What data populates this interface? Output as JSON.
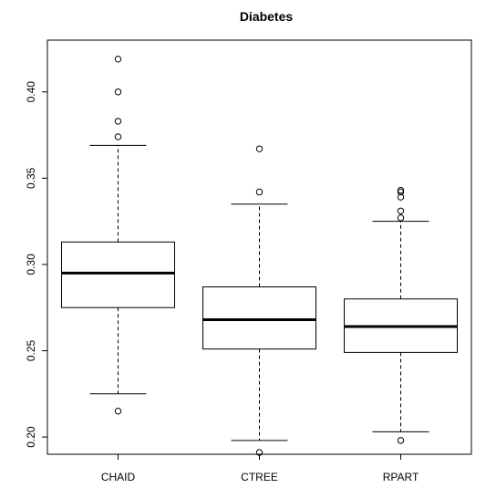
{
  "chart_data": {
    "type": "boxplot",
    "title": "Diabetes",
    "xlabel": "",
    "ylabel": "",
    "ylim": [
      0.19,
      0.43
    ],
    "yticks": [
      "0.20",
      "0.25",
      "0.30",
      "0.35",
      "0.40"
    ],
    "grid": false,
    "categories": [
      "CHAID",
      "CTREE",
      "RPART"
    ],
    "boxes": [
      {
        "category": "CHAID",
        "whisker_low": 0.225,
        "q1": 0.275,
        "median": 0.295,
        "q3": 0.313,
        "whisker_high": 0.369,
        "outliers": [
          0.419,
          0.4,
          0.383,
          0.374,
          0.215
        ]
      },
      {
        "category": "CTREE",
        "whisker_low": 0.198,
        "q1": 0.251,
        "median": 0.268,
        "q3": 0.287,
        "whisker_high": 0.335,
        "outliers": [
          0.367,
          0.342,
          0.191
        ]
      },
      {
        "category": "RPART",
        "whisker_low": 0.203,
        "q1": 0.249,
        "median": 0.264,
        "q3": 0.28,
        "whisker_high": 0.325,
        "outliers": [
          0.343,
          0.342,
          0.339,
          0.331,
          0.327,
          0.198
        ]
      }
    ]
  }
}
